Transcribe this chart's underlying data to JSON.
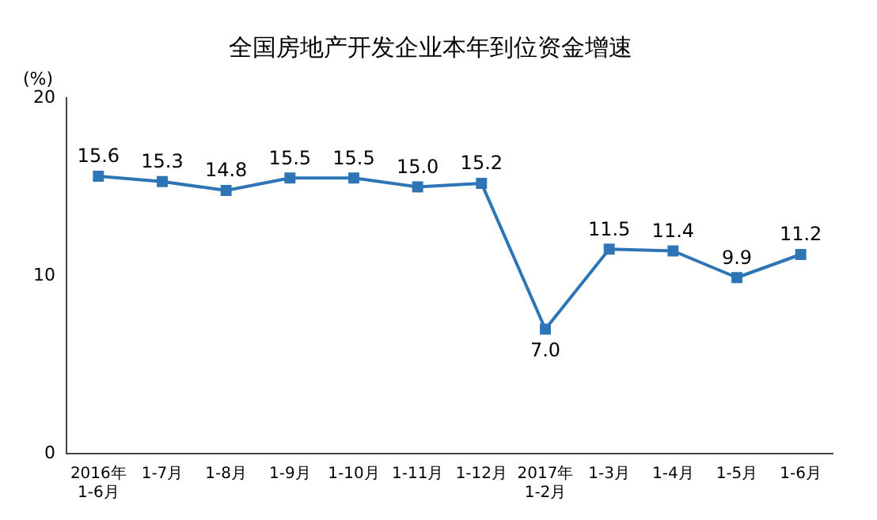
{
  "chart_data": {
    "type": "line",
    "title": "全国房地产开发企业本年到位资金增速",
    "ylabel": "(%)",
    "categories": [
      "2016年\n1-6月",
      "1-7月",
      "1-8月",
      "1-9月",
      "1-10月",
      "1-11月",
      "1-12月",
      "2017年\n1-2月",
      "1-3月",
      "1-4月",
      "1-5月",
      "1-6月"
    ],
    "series": [
      {
        "color": "#2e75b6",
        "values": [
          15.6,
          15.3,
          14.8,
          15.5,
          15.5,
          15.0,
          15.2,
          7.0,
          11.5,
          11.4,
          9.9,
          11.2
        ],
        "value_labels": [
          "15.6",
          "15.3",
          "14.8",
          "15.5",
          "15.5",
          "15.0",
          "15.2",
          "7.0",
          "11.5",
          "11.4",
          "9.9",
          "11.2"
        ]
      }
    ],
    "ylim": [
      0,
      20
    ],
    "yticks": [
      0,
      10,
      20
    ],
    "grid": false,
    "legend": false,
    "marker": "square",
    "line_style": "solid"
  }
}
